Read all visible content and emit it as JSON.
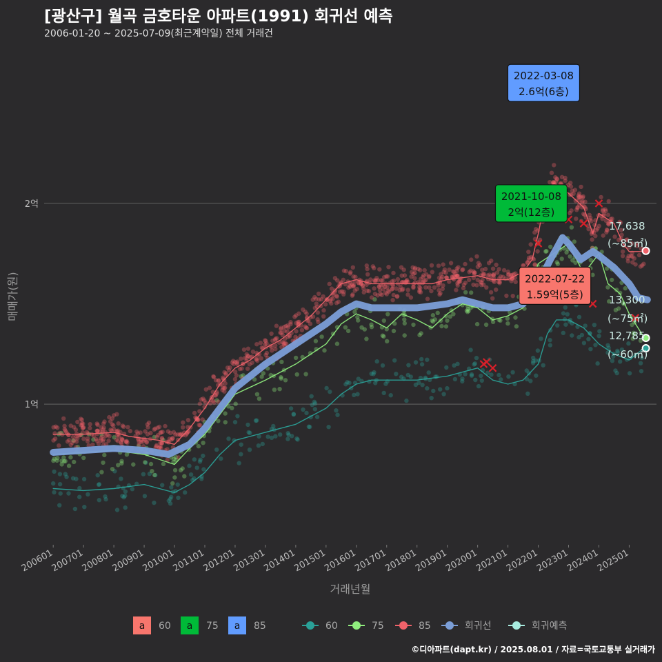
{
  "header": {
    "title": "[광산구] 월곡 금호타운 아파트(1991) 회귀선 예측",
    "subtitle": "2006-01-20 ~ 2025-07-09(최근계약일) 전체 거래건"
  },
  "footer": "©디아파트(dapt.kr) / 2025.08.01 / 자료=국토교통부 실거래가",
  "colors": {
    "background": "#2b2a2c",
    "s60": "#2aa198",
    "s75": "#90ee7e",
    "s85": "#f0626a",
    "regression": "#7b9ed8",
    "forecast": "#a8ece0",
    "box_red": "#f8766d",
    "box_green": "#00ba38",
    "box_blue": "#619cff"
  },
  "chart_data": {
    "type": "line",
    "title": "[광산구] 월곡 금호타운 아파트(1991) 회귀선 예측",
    "xlabel": "거래년월",
    "ylabel": "매매가(원)",
    "ylim_eok": [
      0.3,
      2.8
    ],
    "xlim_year": [
      2005.7,
      2025.9
    ],
    "x_ticks": [
      "200601",
      "200701",
      "200801",
      "200901",
      "201001",
      "201101",
      "201201",
      "201301",
      "201401",
      "201501",
      "201601",
      "201701",
      "201801",
      "201901",
      "202001",
      "202101",
      "202201",
      "202301",
      "202401",
      "202501"
    ],
    "y_ticks": [
      {
        "value": 1,
        "label": "1억"
      },
      {
        "value": 2,
        "label": "2억"
      }
    ],
    "series": [
      {
        "name": "85",
        "color": "#f0626a",
        "x": [
          2006.0,
          2007.0,
          2008.0,
          2008.5,
          2009.0,
          2009.5,
          2010.0,
          2010.5,
          2011.0,
          2011.5,
          2012.0,
          2012.5,
          2013.0,
          2013.5,
          2014.0,
          2014.5,
          2015.0,
          2015.5,
          2016.0,
          2016.5,
          2017.0,
          2017.5,
          2018.0,
          2018.5,
          2019.0,
          2019.5,
          2020.0,
          2020.5,
          2021.0,
          2021.5,
          2021.8,
          2022.0,
          2022.2,
          2022.5,
          2022.8,
          2023.0,
          2023.5,
          2023.8,
          2024.0,
          2024.5,
          2024.8,
          2025.0,
          2025.5
        ],
        "y": [
          0.85,
          0.85,
          0.86,
          0.84,
          0.83,
          0.82,
          0.8,
          0.88,
          0.98,
          1.1,
          1.18,
          1.22,
          1.28,
          1.32,
          1.38,
          1.44,
          1.52,
          1.6,
          1.62,
          1.6,
          1.6,
          1.6,
          1.6,
          1.6,
          1.62,
          1.63,
          1.64,
          1.62,
          1.62,
          1.66,
          1.72,
          1.85,
          2.0,
          2.1,
          2.08,
          2.05,
          1.98,
          1.85,
          1.95,
          1.9,
          1.8,
          1.76,
          1.76
        ]
      },
      {
        "name": "75",
        "color": "#90ee7e",
        "x": [
          2006.0,
          2007.0,
          2008.0,
          2009.0,
          2010.0,
          2010.5,
          2011.0,
          2011.5,
          2012.0,
          2013.0,
          2014.0,
          2015.0,
          2015.5,
          2016.0,
          2016.5,
          2017.0,
          2017.5,
          2018.0,
          2018.5,
          2019.0,
          2019.5,
          2020.0,
          2020.5,
          2021.0,
          2021.5,
          2022.0,
          2022.5,
          2023.0,
          2023.5,
          2024.0,
          2024.3,
          2024.7,
          2025.0,
          2025.5
        ],
        "y": [
          0.75,
          0.76,
          0.77,
          0.75,
          0.7,
          0.78,
          0.85,
          0.95,
          1.05,
          1.12,
          1.2,
          1.3,
          1.4,
          1.45,
          1.42,
          1.38,
          1.45,
          1.42,
          1.38,
          1.45,
          1.5,
          1.48,
          1.42,
          1.44,
          1.48,
          1.7,
          1.75,
          1.8,
          1.65,
          1.75,
          1.6,
          1.55,
          1.45,
          1.33
        ]
      },
      {
        "name": "60",
        "color": "#2aa198",
        "x": [
          2006.0,
          2007.0,
          2008.0,
          2008.5,
          2009.0,
          2009.5,
          2010.0,
          2010.5,
          2011.0,
          2011.5,
          2012.0,
          2013.0,
          2014.0,
          2015.0,
          2015.5,
          2016.0,
          2016.5,
          2017.0,
          2018.0,
          2019.0,
          2019.5,
          2020.0,
          2020.5,
          2021.0,
          2021.5,
          2022.0,
          2022.3,
          2022.6,
          2023.0,
          2023.5,
          2024.0,
          2024.5,
          2025.0,
          2025.5
        ],
        "y": [
          0.58,
          0.57,
          0.58,
          0.59,
          0.6,
          0.58,
          0.56,
          0.6,
          0.66,
          0.75,
          0.82,
          0.86,
          0.9,
          0.98,
          1.05,
          1.1,
          1.12,
          1.12,
          1.12,
          1.14,
          1.16,
          1.18,
          1.12,
          1.1,
          1.12,
          1.2,
          1.35,
          1.42,
          1.42,
          1.38,
          1.3,
          1.25,
          1.22,
          1.28
        ]
      },
      {
        "name": "회귀선",
        "color": "#7b9ed8",
        "x": [
          2006.0,
          2007.0,
          2008.0,
          2009.0,
          2009.8,
          2010.5,
          2011.0,
          2012.0,
          2013.0,
          2014.0,
          2015.0,
          2015.5,
          2016.0,
          2016.5,
          2017.0,
          2018.0,
          2019.0,
          2019.5,
          2020.0,
          2020.5,
          2021.0,
          2021.5,
          2022.0,
          2022.4,
          2022.8,
          2023.0,
          2023.4,
          2023.8,
          2024.0,
          2024.5,
          2025.0,
          2025.3,
          2025.6
        ],
        "y": [
          0.76,
          0.77,
          0.78,
          0.77,
          0.75,
          0.8,
          0.88,
          1.08,
          1.2,
          1.3,
          1.4,
          1.46,
          1.5,
          1.48,
          1.48,
          1.48,
          1.5,
          1.52,
          1.5,
          1.48,
          1.48,
          1.5,
          1.6,
          1.72,
          1.83,
          1.8,
          1.72,
          1.76,
          1.74,
          1.68,
          1.6,
          1.53,
          1.52
        ]
      }
    ],
    "callouts": [
      {
        "date": "2022-03-08",
        "label": "2.6억(6층)",
        "color": "#619cff",
        "x": 2022.18,
        "y": 2.6
      },
      {
        "date": "2021-10-08",
        "label": "2억(12층)",
        "color": "#00ba38",
        "x": 2021.77,
        "y": 2.0
      },
      {
        "date": "2022-07-22",
        "label": "1.59억(5층)",
        "color": "#f8766d",
        "x": 2022.55,
        "y": 1.59
      }
    ],
    "end_labels": [
      {
        "value": "17,638",
        "size": "(~85㎡)",
        "color": "#f0626a",
        "x": 2025.55,
        "y": 1.7638
      },
      {
        "value": "13,300",
        "size": "(~75㎡)",
        "color": "#90ee7e",
        "x": 2025.55,
        "y": 1.33
      },
      {
        "value": "12,785",
        "size": "(~60㎡)",
        "color": "#2aa198",
        "x": 2025.55,
        "y": 1.2785
      }
    ],
    "cross_marks": [
      {
        "x": 2022.0,
        "y": 1.8
      },
      {
        "x": 2024.0,
        "y": 2.0
      },
      {
        "x": 2023.5,
        "y": 1.9
      },
      {
        "x": 2023.0,
        "y": 1.92
      },
      {
        "x": 2023.8,
        "y": 1.5
      },
      {
        "x": 2025.2,
        "y": 1.43
      },
      {
        "x": 2020.2,
        "y": 1.2
      },
      {
        "x": 2020.5,
        "y": 1.18
      },
      {
        "x": 2020.3,
        "y": 1.21
      }
    ]
  },
  "legend": {
    "fill_items": [
      {
        "glyph": "a",
        "label": "60",
        "color": "#f8766d"
      },
      {
        "glyph": "a",
        "label": "75",
        "color": "#00ba38"
      },
      {
        "glyph": "a",
        "label": "85",
        "color": "#619cff"
      }
    ],
    "line_items": [
      {
        "label": "60",
        "color": "#2aa198"
      },
      {
        "label": "75",
        "color": "#90ee7e"
      },
      {
        "label": "85",
        "color": "#f0626a"
      },
      {
        "label": "회귀선",
        "color": "#7b9ed8"
      },
      {
        "label": "회귀예측",
        "color": "#a8ece0"
      }
    ]
  }
}
